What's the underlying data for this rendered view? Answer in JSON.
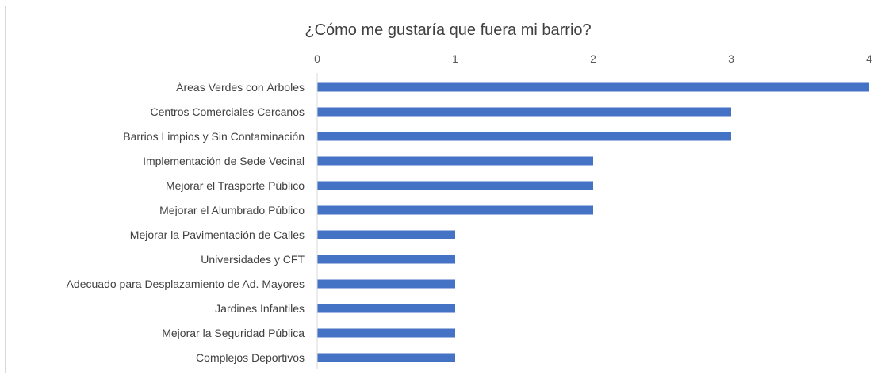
{
  "chart_data": {
    "type": "bar",
    "orientation": "horizontal",
    "title": "¿Cómo me gustaría que fuera mi barrio?",
    "categories": [
      "Áreas Verdes con Árboles",
      "Centros Comerciales Cercanos",
      "Barrios Limpios y Sin Contaminación",
      "Implementación de Sede Vecinal",
      "Mejorar el Trasporte Público",
      "Mejorar el Alumbrado Público",
      "Mejorar la Pavimentación de Calles",
      "Universidades y CFT",
      "Adecuado para Desplazamiento de Ad. Mayores",
      "Jardines Infantiles",
      "Mejorar la Seguridad Pública",
      "Complejos Deportivos"
    ],
    "values": [
      4,
      3,
      3,
      2,
      2,
      2,
      1,
      1,
      1,
      1,
      1,
      1
    ],
    "xlim": [
      0,
      4
    ],
    "x_ticks": [
      "0",
      "1",
      "2",
      "3",
      "4"
    ],
    "x_axis_position": "top",
    "grid": false,
    "legend": "none",
    "bar_color": "#4472C4"
  }
}
